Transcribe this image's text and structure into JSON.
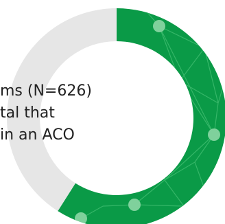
{
  "colors": {
    "segment": "#0a9a47",
    "remainder": "#e6e6e6",
    "network_line": "#35b668",
    "network_node": "#7fd19c"
  },
  "center_text": [
    "ms (N=626)",
    "tal that",
    "in an ACO"
  ],
  "chart_data": {
    "type": "pie",
    "style": "donut",
    "slices": [
      {
        "value": 0.59,
        "color": "#0a9a47"
      },
      {
        "value": 0.41,
        "color": "#e6e6e6"
      }
    ],
    "texture": "network-nodes-and-lines on green segment"
  }
}
